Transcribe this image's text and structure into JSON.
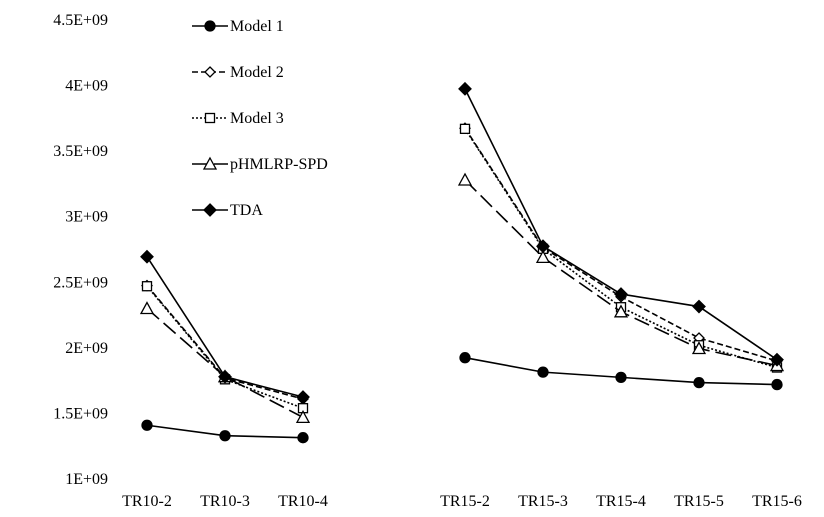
{
  "chart_data": {
    "type": "line",
    "title": "",
    "xlabel": "",
    "ylabel": "",
    "ylim": [
      1000000000,
      4500000000
    ],
    "y_ticks": [
      {
        "value": 1000000000,
        "label": "1E+09"
      },
      {
        "value": 1500000000,
        "label": "1.5E+09"
      },
      {
        "value": 2000000000,
        "label": "2E+09"
      },
      {
        "value": 2500000000,
        "label": "2.5E+09"
      },
      {
        "value": 3000000000,
        "label": "3E+09"
      },
      {
        "value": 3500000000,
        "label": "3.5E+09"
      },
      {
        "value": 4000000000,
        "label": "4E+09"
      },
      {
        "value": 4500000000,
        "label": "4.5E+09"
      }
    ],
    "categories": [
      "TR10-2",
      "TR10-3",
      "TR10-4",
      "TR15-2",
      "TR15-3",
      "TR15-4",
      "TR15-5",
      "TR15-6"
    ],
    "groups": [
      {
        "categories": [
          "TR10-2",
          "TR10-3",
          "TR10-4"
        ]
      },
      {
        "categories": [
          "TR15-2",
          "TR15-3",
          "TR15-4",
          "TR15-5",
          "TR15-6"
        ]
      }
    ],
    "grid": false,
    "legend_position": "top-left",
    "series": [
      {
        "name": "Model 1",
        "color": "#000000",
        "dash": "solid",
        "marker": "filled-circle",
        "values": [
          1410000000,
          1330000000,
          1315000000,
          1925000000,
          1815000000,
          1775000000,
          1735000000,
          1720000000
        ]
      },
      {
        "name": "Model 2",
        "color": "#000000",
        "dash": "dashed",
        "marker": "open-diamond",
        "values": [
          2475000000,
          1770000000,
          1610000000,
          3675000000,
          2765000000,
          2390000000,
          2075000000,
          1900000000
        ]
      },
      {
        "name": "Model 3",
        "color": "#000000",
        "dash": "dotted",
        "marker": "open-square",
        "values": [
          2470000000,
          1760000000,
          1540000000,
          3670000000,
          2755000000,
          2310000000,
          2020000000,
          1850000000
        ]
      },
      {
        "name": "pHMLRP-SPD",
        "color": "#000000",
        "dash": "long-dash",
        "marker": "open-triangle",
        "values": [
          2300000000,
          1780000000,
          1470000000,
          3280000000,
          2690000000,
          2275000000,
          1995000000,
          1865000000
        ]
      },
      {
        "name": "TDA",
        "color": "#000000",
        "dash": "solid",
        "marker": "filled-diamond",
        "values": [
          2695000000,
          1780000000,
          1625000000,
          3975000000,
          2775000000,
          2410000000,
          2315000000,
          1910000000
        ]
      }
    ]
  }
}
